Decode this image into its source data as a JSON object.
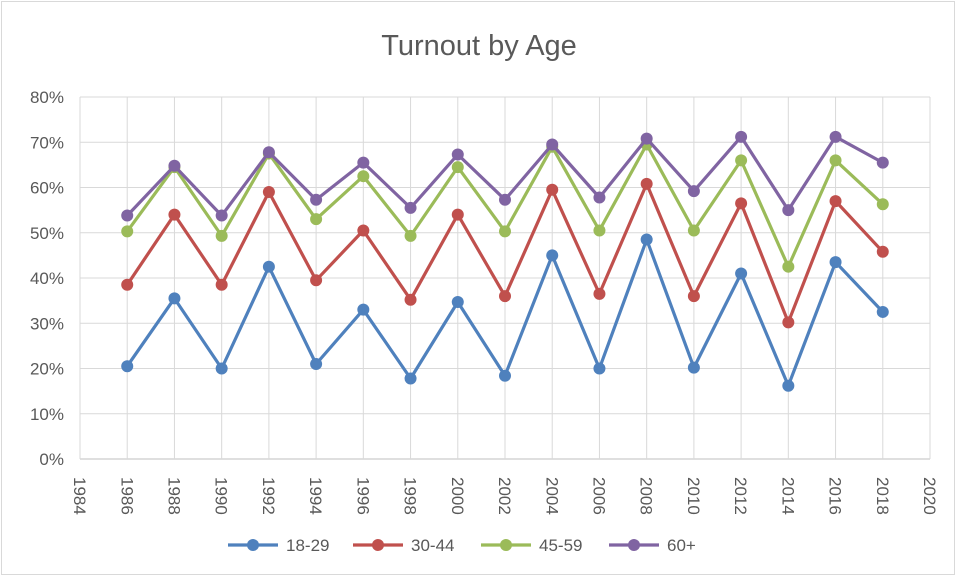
{
  "chart_data": {
    "type": "line",
    "title": "Turnout by Age",
    "xlabel": "",
    "ylabel": "",
    "x_ticks": [
      "1984",
      "1986",
      "1988",
      "1990",
      "1992",
      "1994",
      "1996",
      "1998",
      "2000",
      "2002",
      "2004",
      "2006",
      "2008",
      "2010",
      "2012",
      "2014",
      "2016",
      "2018",
      "2020"
    ],
    "y_ticks": [
      "0%",
      "10%",
      "20%",
      "30%",
      "40%",
      "50%",
      "60%",
      "70%",
      "80%"
    ],
    "xlim": [
      1984,
      2020
    ],
    "ylim": [
      0,
      80
    ],
    "grid": true,
    "legend_position": "bottom",
    "x": [
      1986,
      1988,
      1990,
      1992,
      1994,
      1996,
      1998,
      2000,
      2002,
      2004,
      2006,
      2008,
      2010,
      2012,
      2014,
      2016,
      2018
    ],
    "series": [
      {
        "name": "18-29",
        "color": "#4f81bd",
        "values": [
          20.5,
          35.5,
          20.0,
          42.5,
          21.0,
          33.0,
          17.8,
          34.7,
          18.4,
          45.0,
          20.0,
          48.5,
          20.2,
          41.0,
          16.2,
          43.5,
          32.5
        ]
      },
      {
        "name": "30-44",
        "color": "#c0504d",
        "values": [
          38.5,
          54.0,
          38.5,
          59.0,
          39.5,
          50.5,
          35.2,
          54.0,
          36.0,
          59.5,
          36.5,
          60.8,
          36.0,
          56.5,
          30.2,
          57.0,
          45.8
        ]
      },
      {
        "name": "45-59",
        "color": "#9bbb59",
        "values": [
          50.3,
          64.5,
          49.3,
          67.5,
          53.0,
          62.5,
          49.3,
          64.5,
          50.3,
          69.0,
          50.5,
          69.5,
          50.5,
          66.0,
          42.5,
          66.0,
          56.3
        ]
      },
      {
        "name": "60+",
        "color": "#8064a2",
        "values": [
          53.8,
          64.8,
          53.8,
          67.8,
          57.3,
          65.5,
          55.5,
          67.3,
          57.3,
          69.5,
          57.8,
          70.8,
          59.2,
          71.2,
          55.0,
          71.2,
          65.5
        ]
      }
    ]
  }
}
